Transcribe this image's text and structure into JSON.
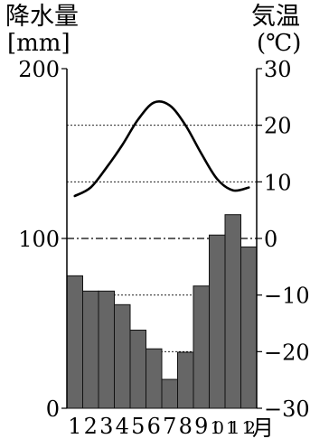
{
  "chart_data": {
    "type": "bar",
    "title": "",
    "left_axis": {
      "label": "降水量",
      "unit": "[mm]",
      "ticks": [
        0,
        100,
        200
      ],
      "ylim": [
        0,
        200
      ]
    },
    "right_axis": {
      "label": "気温",
      "unit": "(℃)",
      "ticks": [
        30,
        20,
        10,
        0,
        -10,
        -20,
        -30
      ],
      "ylim": [
        -30,
        30
      ]
    },
    "x_axis": {
      "categories": [
        "1",
        "2",
        "3",
        "4",
        "5",
        "6",
        "7",
        "8",
        "9",
        "10",
        "11",
        "12"
      ],
      "suffix": "月"
    },
    "precipitation_mm": [
      78,
      69,
      69,
      61,
      46,
      35,
      17,
      33,
      72,
      102,
      114,
      95
    ],
    "temperature_c": [
      7.5,
      9.0,
      12.5,
      16.5,
      21.0,
      24.0,
      23.5,
      20.0,
      15.0,
      10.5,
      8.5,
      9.0
    ],
    "reference_lines": [
      20,
      10,
      0,
      -10,
      -20
    ],
    "colors": {
      "bar_fill": "#666666",
      "bar_stroke": "#111111",
      "line": "#000000",
      "axis": "#000000",
      "grid": "#000000"
    }
  }
}
